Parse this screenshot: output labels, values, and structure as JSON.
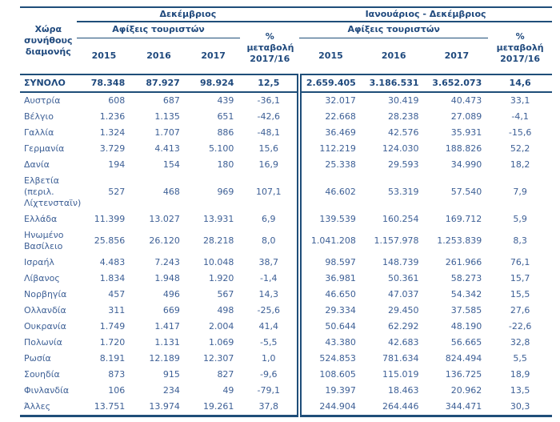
{
  "colors": {
    "rule_line": "#1F4E79",
    "header_text": "#1F497D",
    "data_text": "#3E6096",
    "background": "#FFFFFF"
  },
  "table": {
    "row_header": "Χώρα συνήθους διαμονής",
    "period1": "Δεκέμβριος",
    "period2": "Ιανουάριος - Δεκέμβριος",
    "arrivals_label": "Αφίξεις τουριστών",
    "pct_change_label": "% μεταβολή 2017/16",
    "years": [
      "2015",
      "2016",
      "2017"
    ],
    "rows": [
      {
        "total": true,
        "label": "ΣΥΝΟΛΟ",
        "dec": [
          "78.348",
          "87.927",
          "98.924",
          "12,5"
        ],
        "jan_dec": [
          "2.659.405",
          "3.186.531",
          "3.652.073",
          "14,6"
        ]
      },
      {
        "label": "Αυστρία",
        "dec": [
          "608",
          "687",
          "439",
          "-36,1"
        ],
        "jan_dec": [
          "32.017",
          "30.419",
          "40.473",
          "33,1"
        ]
      },
      {
        "label": "Βέλγιο",
        "dec": [
          "1.236",
          "1.135",
          "651",
          "-42,6"
        ],
        "jan_dec": [
          "22.668",
          "28.238",
          "27.089",
          "-4,1"
        ]
      },
      {
        "label": "Γαλλία",
        "dec": [
          "1.324",
          "1.707",
          "886",
          "-48,1"
        ],
        "jan_dec": [
          "36.469",
          "42.576",
          "35.931",
          "-15,6"
        ]
      },
      {
        "label": "Γερμανία",
        "dec": [
          "3.729",
          "4.413",
          "5.100",
          "15,6"
        ],
        "jan_dec": [
          "112.219",
          "124.030",
          "188.826",
          "52,2"
        ]
      },
      {
        "label": "Δανία",
        "dec": [
          "194",
          "154",
          "180",
          "16,9"
        ],
        "jan_dec": [
          "25.338",
          "29.593",
          "34.990",
          "18,2"
        ]
      },
      {
        "label": "Ελβετία (περιλ. Λίχτενσταϊν)",
        "dec": [
          "527",
          "468",
          "969",
          "107,1"
        ],
        "jan_dec": [
          "46.602",
          "53.319",
          "57.540",
          "7,9"
        ]
      },
      {
        "label": "Ελλάδα",
        "dec": [
          "11.399",
          "13.027",
          "13.931",
          "6,9"
        ],
        "jan_dec": [
          "139.539",
          "160.254",
          "169.712",
          "5,9"
        ]
      },
      {
        "label": "Ηνωμένο Βασίλειο",
        "dec": [
          "25.856",
          "26.120",
          "28.218",
          "8,0"
        ],
        "jan_dec": [
          "1.041.208",
          "1.157.978",
          "1.253.839",
          "8,3"
        ]
      },
      {
        "label": "Ισραήλ",
        "dec": [
          "4.483",
          "7.243",
          "10.048",
          "38,7"
        ],
        "jan_dec": [
          "98.597",
          "148.739",
          "261.966",
          "76,1"
        ]
      },
      {
        "label": "Λίβανος",
        "dec": [
          "1.834",
          "1.948",
          "1.920",
          "-1,4"
        ],
        "jan_dec": [
          "36.981",
          "50.361",
          "58.273",
          "15,7"
        ]
      },
      {
        "label": "Νορβηγία",
        "dec": [
          "457",
          "496",
          "567",
          "14,3"
        ],
        "jan_dec": [
          "46.650",
          "47.037",
          "54.342",
          "15,5"
        ]
      },
      {
        "label": "Ολλανδία",
        "dec": [
          "311",
          "669",
          "498",
          "-25,6"
        ],
        "jan_dec": [
          "29.334",
          "29.450",
          "37.585",
          "27,6"
        ]
      },
      {
        "label": "Ουκρανία",
        "dec": [
          "1.749",
          "1.417",
          "2.004",
          "41,4"
        ],
        "jan_dec": [
          "50.644",
          "62.292",
          "48.190",
          "-22,6"
        ]
      },
      {
        "label": "Πολωνία",
        "dec": [
          "1.720",
          "1.131",
          "1.069",
          "-5,5"
        ],
        "jan_dec": [
          "43.380",
          "42.683",
          "56.665",
          "32,8"
        ]
      },
      {
        "label": "Ρωσία",
        "dec": [
          "8.191",
          "12.189",
          "12.307",
          "1,0"
        ],
        "jan_dec": [
          "524.853",
          "781.634",
          "824.494",
          "5,5"
        ]
      },
      {
        "label": "Σουηδία",
        "dec": [
          "873",
          "915",
          "827",
          "-9,6"
        ],
        "jan_dec": [
          "108.605",
          "115.019",
          "136.725",
          "18,9"
        ]
      },
      {
        "label": "Φινλανδία",
        "dec": [
          "106",
          "234",
          "49",
          "-79,1"
        ],
        "jan_dec": [
          "19.397",
          "18.463",
          "20.962",
          "13,5"
        ]
      },
      {
        "label": "Άλλες",
        "dec": [
          "13.751",
          "13.974",
          "19.261",
          "37,8"
        ],
        "jan_dec": [
          "244.904",
          "264.446",
          "344.471",
          "30,3"
        ]
      }
    ]
  }
}
